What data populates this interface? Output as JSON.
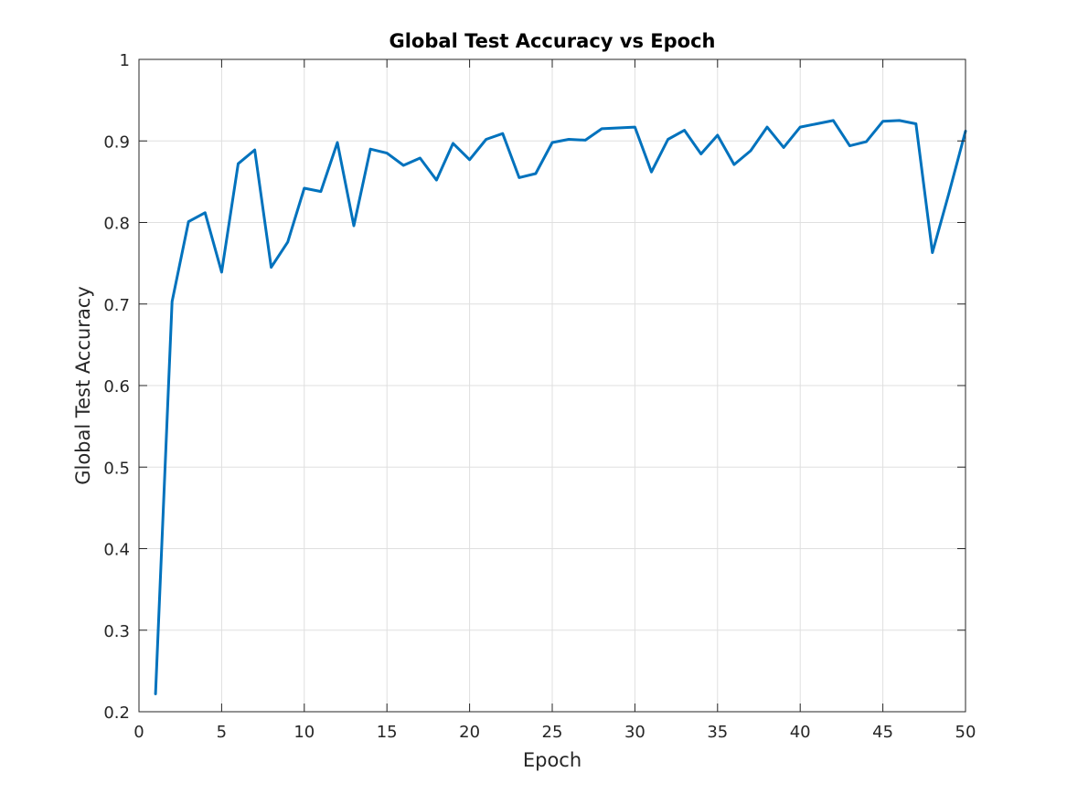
{
  "chart_data": {
    "type": "line",
    "title": "Global Test Accuracy vs Epoch",
    "xlabel": "Epoch",
    "ylabel": "Global Test Accuracy",
    "xlim": [
      0,
      50
    ],
    "ylim": [
      0.2,
      1
    ],
    "xticks": [
      "0",
      "5",
      "10",
      "15",
      "20",
      "25",
      "30",
      "35",
      "40",
      "45",
      "50"
    ],
    "yticks": [
      "0.2",
      "0.3",
      "0.4",
      "0.5",
      "0.6",
      "0.7",
      "0.8",
      "0.9",
      "1"
    ],
    "grid": true,
    "legend": "none",
    "series": [
      {
        "color": "#0072BD",
        "x": [
          1,
          2,
          3,
          4,
          5,
          6,
          7,
          8,
          9,
          10,
          11,
          12,
          13,
          14,
          15,
          16,
          17,
          18,
          19,
          20,
          21,
          22,
          23,
          24,
          25,
          26,
          27,
          28,
          29,
          30,
          31,
          32,
          33,
          34,
          35,
          36,
          37,
          38,
          39,
          40,
          41,
          42,
          43,
          44,
          45,
          46,
          47,
          48,
          49,
          50
        ],
        "y": [
          0.222,
          0.703,
          0.801,
          0.812,
          0.739,
          0.872,
          0.889,
          0.745,
          0.776,
          0.842,
          0.838,
          0.898,
          0.796,
          0.89,
          0.885,
          0.87,
          0.879,
          0.852,
          0.897,
          0.877,
          0.902,
          0.909,
          0.855,
          0.86,
          0.898,
          0.902,
          0.901,
          0.915,
          0.916,
          0.917,
          0.862,
          0.902,
          0.913,
          0.884,
          0.907,
          0.871,
          0.888,
          0.917,
          0.892,
          0.917,
          0.921,
          0.925,
          0.894,
          0.899,
          0.924,
          0.925,
          0.921,
          0.763,
          0.836,
          0.912
        ]
      }
    ]
  }
}
